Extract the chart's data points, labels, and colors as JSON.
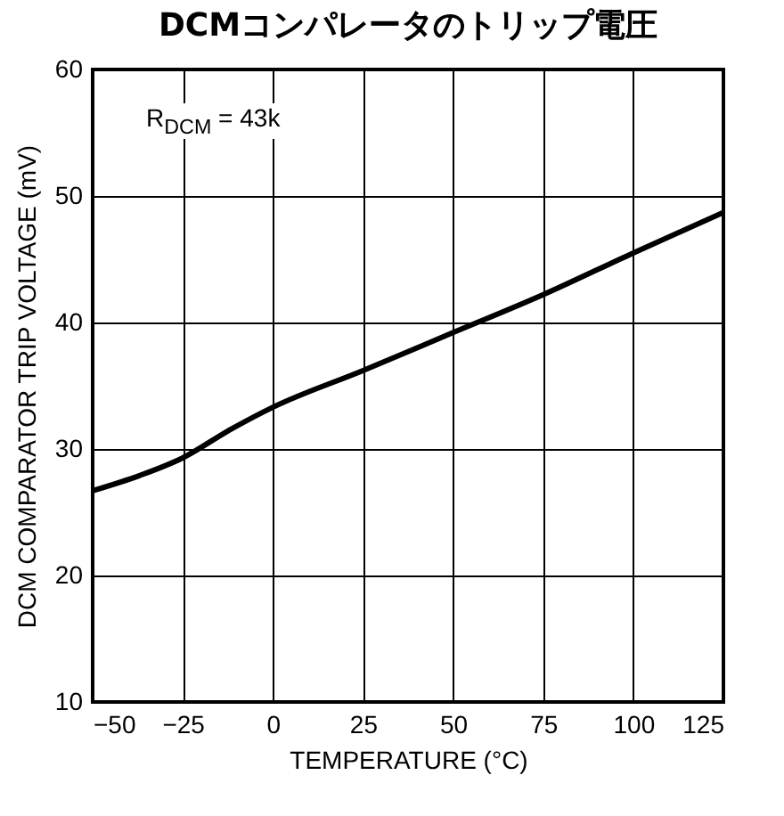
{
  "chart_data": {
    "type": "line",
    "title": "DCMコンパレータのトリップ電圧",
    "xlabel": "TEMPERATURE (°C)",
    "ylabel": "DCM COMPARATOR TRIP VOLTAGE (mV)",
    "x": [
      -50,
      -37,
      -25,
      -12,
      0,
      25,
      50,
      75,
      100,
      125
    ],
    "series": [
      {
        "color": "#000000",
        "values": [
          26.7,
          27.9,
          29.3,
          31.5,
          33.3,
          36.2,
          39.2,
          42.2,
          45.5,
          48.7
        ]
      }
    ],
    "xlim": [
      -50,
      125
    ],
    "xticks": [
      {
        "value": -50,
        "label": "−50"
      },
      {
        "value": -25,
        "label": "−25"
      },
      0,
      25,
      50,
      75,
      100,
      125
    ],
    "ylim": [
      10,
      60
    ],
    "yticks": [
      10,
      20,
      30,
      40,
      50,
      60
    ],
    "grid": true,
    "annotations": [
      "R$_{DCM}$ = 43k"
    ]
  }
}
